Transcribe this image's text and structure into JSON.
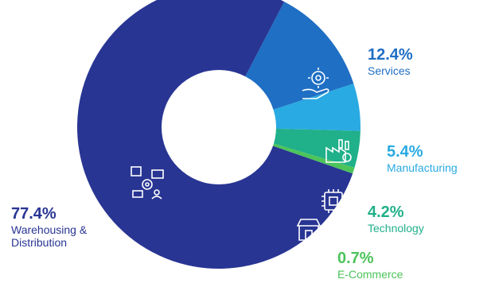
{
  "chart_data": {
    "type": "pie",
    "donut": true,
    "categories": [
      "Warehousing & Distribution",
      "Services",
      "Manufacturing",
      "Technology",
      "E-Commerce"
    ],
    "values": [
      77.4,
      12.4,
      5.4,
      4.2,
      0.7
    ],
    "labels": [
      "77.4%",
      "12.4%",
      "5.4%",
      "4.2%",
      "0.7%"
    ],
    "colors": [
      "#283593",
      "#1f6fc4",
      "#29aae2",
      "#20b08a",
      "#4cc45a"
    ],
    "label_colors": [
      "#283593",
      "#1f6fc4",
      "#29aae2",
      "#20b08a",
      "#4cc45a"
    ],
    "icons": [
      "warehouse-icon",
      "service-hand-gear-icon",
      "factory-icon",
      "chip-icon",
      "storefront-icon"
    ]
  }
}
